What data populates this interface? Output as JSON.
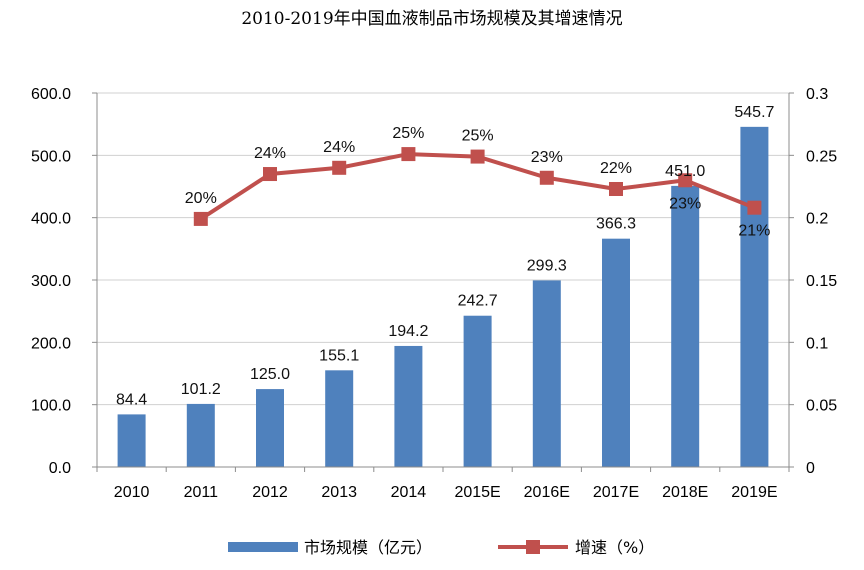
{
  "chart_data": {
    "type": "bar",
    "title": "2010-2019年中国血液制品市场规模及其增速情况",
    "categories": [
      "2010",
      "2011",
      "2012",
      "2013",
      "2014",
      "2015E",
      "2016E",
      "2017E",
      "2018E",
      "2019E"
    ],
    "series": [
      {
        "name": "市场规模（亿元）",
        "type": "bar",
        "axis": "left",
        "color": "#4F81BD",
        "values": [
          84.4,
          101.2,
          125.0,
          155.1,
          194.2,
          242.7,
          299.3,
          366.3,
          451.0,
          545.7
        ],
        "labels": [
          "84.4",
          "101.2",
          "125.0",
          "155.1",
          "194.2",
          "242.7",
          "299.3",
          "366.3",
          "451.0",
          "545.7"
        ]
      },
      {
        "name": "增速（%）",
        "type": "line",
        "axis": "right",
        "color": "#C0504D",
        "values": [
          null,
          0.199,
          0.235,
          0.24,
          0.251,
          0.249,
          0.232,
          0.223,
          0.23,
          0.208
        ],
        "labels": [
          "",
          "20%",
          "24%",
          "24%",
          "25%",
          "25%",
          "23%",
          "22%",
          "23%",
          "21%"
        ]
      }
    ],
    "ylim_left": [
      0,
      600
    ],
    "yticks_left": [
      "0.0",
      "100.0",
      "200.0",
      "300.0",
      "400.0",
      "500.0",
      "600.0"
    ],
    "ylim_right": [
      0,
      0.3
    ],
    "yticks_right": [
      "0",
      "0.05",
      "0.1",
      "0.15",
      "0.2",
      "0.25",
      "0.3"
    ],
    "grid": true,
    "legend": "bottom"
  }
}
